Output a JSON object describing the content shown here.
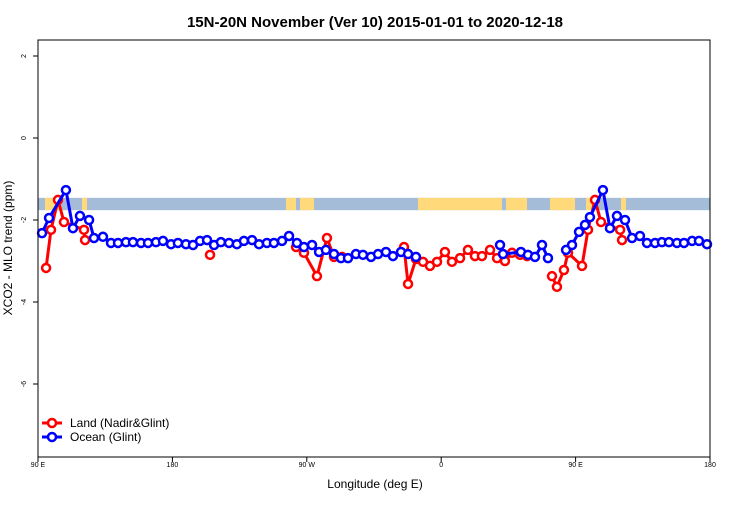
{
  "chart_data": {
    "type": "line",
    "title": "15N-20N November (Ver 10)   2015-01-01 to 2020-12-18",
    "xlabel": "Longitude (deg E)",
    "ylabel": "XCO2 - MLO trend (ppm)",
    "xlim": [
      90,
      540
    ],
    "ylim": [
      -7.7,
      2.4
    ],
    "x_ticks": [
      {
        "value": 90,
        "label": "90 E"
      },
      {
        "value": 180,
        "label": "180"
      },
      {
        "value": 270,
        "label": "90 W"
      },
      {
        "value": 360,
        "label": "0"
      },
      {
        "value": 450,
        "label": "90 E"
      },
      {
        "value": 540,
        "label": "180"
      }
    ],
    "y_ticks": [
      {
        "value": 2,
        "label": "2"
      },
      {
        "value": 0,
        "label": "0"
      },
      {
        "value": -2,
        "label": "-2"
      },
      {
        "value": -4,
        "label": "-4"
      },
      {
        "value": -6,
        "label": "-6"
      }
    ],
    "legend_position": "bottom-left",
    "series": [
      {
        "name": "Land (Nadir&Glint)",
        "color": "#ff0000",
        "points": [
          [
            95.4,
            -3.17
          ],
          [
            98.7,
            -2.24
          ],
          [
            103.4,
            -1.51
          ],
          [
            107.4,
            -2.05
          ],
          [
            120.8,
            -2.24
          ],
          [
            121.5,
            -2.49
          ],
          null,
          [
            205.2,
            -2.85
          ],
          null,
          [
            262.8,
            -2.66
          ],
          [
            268.1,
            -2.8
          ],
          [
            276.8,
            -3.37
          ],
          [
            283.5,
            -2.44
          ],
          [
            288.2,
            -2.9
          ],
          [
            293.6,
            -2.9
          ],
          null,
          [
            335.1,
            -2.66
          ],
          [
            337.8,
            -3.56
          ],
          [
            343.1,
            -2.95
          ],
          [
            347.8,
            -3.02
          ],
          [
            352.5,
            -3.12
          ],
          [
            357.2,
            -3.02
          ],
          [
            362.5,
            -2.78
          ],
          [
            367.2,
            -3.02
          ],
          [
            372.6,
            -2.93
          ],
          [
            377.9,
            -2.73
          ],
          [
            382.6,
            -2.88
          ],
          [
            387.3,
            -2.88
          ],
          [
            392.7,
            -2.73
          ],
          [
            397.4,
            -2.93
          ],
          [
            402.7,
            -3.0
          ],
          [
            407.4,
            -2.8
          ],
          [
            412.8,
            -2.85
          ],
          [
            417.5,
            -2.88
          ],
          null,
          [
            434.2,
            -3.37
          ],
          [
            437.5,
            -3.63
          ],
          [
            442.2,
            -3.22
          ],
          [
            444.9,
            -2.8
          ],
          [
            454.3,
            -3.12
          ],
          [
            458.3,
            -2.24
          ],
          [
            463.0,
            -1.51
          ],
          [
            467.0,
            -2.05
          ],
          [
            479.8,
            -2.24
          ],
          [
            481.1,
            -2.49
          ]
        ]
      },
      {
        "name": "Ocean (Glint)",
        "color": "#0000ff",
        "points": [
          [
            92.7,
            -2.32
          ],
          [
            97.4,
            -1.95
          ],
          [
            108.7,
            -1.27
          ],
          [
            113.4,
            -2.2
          ],
          [
            118.1,
            -1.9
          ],
          [
            124.2,
            -2.0
          ],
          [
            127.5,
            -2.44
          ],
          [
            133.5,
            -2.41
          ],
          [
            138.9,
            -2.56
          ],
          [
            143.6,
            -2.56
          ],
          [
            148.9,
            -2.54
          ],
          [
            153.6,
            -2.54
          ],
          [
            159.0,
            -2.56
          ],
          [
            163.7,
            -2.56
          ],
          [
            169.0,
            -2.54
          ],
          [
            173.7,
            -2.51
          ],
          [
            179.1,
            -2.59
          ],
          [
            183.7,
            -2.56
          ],
          [
            189.1,
            -2.59
          ],
          [
            193.8,
            -2.61
          ],
          [
            198.5,
            -2.51
          ],
          [
            203.2,
            -2.49
          ],
          [
            207.9,
            -2.61
          ],
          [
            212.5,
            -2.54
          ],
          [
            217.9,
            -2.56
          ],
          [
            223.2,
            -2.59
          ],
          [
            227.9,
            -2.51
          ],
          [
            233.3,
            -2.49
          ],
          [
            238.0,
            -2.59
          ],
          [
            243.3,
            -2.56
          ],
          [
            248.0,
            -2.56
          ],
          [
            253.4,
            -2.51
          ],
          [
            258.1,
            -2.39
          ],
          [
            263.4,
            -2.56
          ],
          [
            268.1,
            -2.66
          ],
          [
            273.5,
            -2.61
          ],
          [
            278.2,
            -2.78
          ],
          [
            282.8,
            -2.73
          ],
          [
            288.2,
            -2.83
          ],
          [
            292.9,
            -2.93
          ],
          [
            297.6,
            -2.93
          ],
          [
            302.9,
            -2.83
          ],
          [
            307.6,
            -2.85
          ],
          [
            313.0,
            -2.9
          ],
          [
            317.7,
            -2.83
          ],
          [
            323.0,
            -2.78
          ],
          [
            327.7,
            -2.88
          ],
          [
            333.1,
            -2.78
          ],
          [
            337.8,
            -2.83
          ],
          [
            343.1,
            -2.9
          ],
          null,
          [
            399.4,
            -2.61
          ],
          [
            401.4,
            -2.83
          ],
          [
            413.4,
            -2.78
          ],
          [
            418.1,
            -2.85
          ],
          [
            422.8,
            -2.9
          ],
          [
            427.5,
            -2.61
          ],
          [
            431.5,
            -2.93
          ],
          null,
          [
            443.6,
            -2.73
          ],
          [
            447.6,
            -2.61
          ],
          [
            452.3,
            -2.29
          ],
          [
            456.3,
            -2.12
          ],
          [
            459.6,
            -1.93
          ],
          [
            468.3,
            -1.27
          ],
          [
            473.0,
            -2.2
          ],
          [
            477.7,
            -1.9
          ],
          [
            483.1,
            -2.0
          ],
          [
            487.8,
            -2.44
          ],
          [
            493.1,
            -2.39
          ],
          [
            497.8,
            -2.56
          ],
          [
            503.2,
            -2.56
          ],
          [
            507.8,
            -2.54
          ],
          [
            512.5,
            -2.54
          ],
          [
            517.9,
            -2.56
          ],
          [
            522.6,
            -2.56
          ],
          [
            528.0,
            -2.51
          ],
          [
            532.6,
            -2.51
          ],
          [
            538.0,
            -2.59
          ]
        ]
      }
    ],
    "map_band": {
      "ocean_color": "#a5bcd9",
      "land_color": "#ffd97a",
      "y_range": [
        -1.76,
        -1.46
      ]
    }
  }
}
